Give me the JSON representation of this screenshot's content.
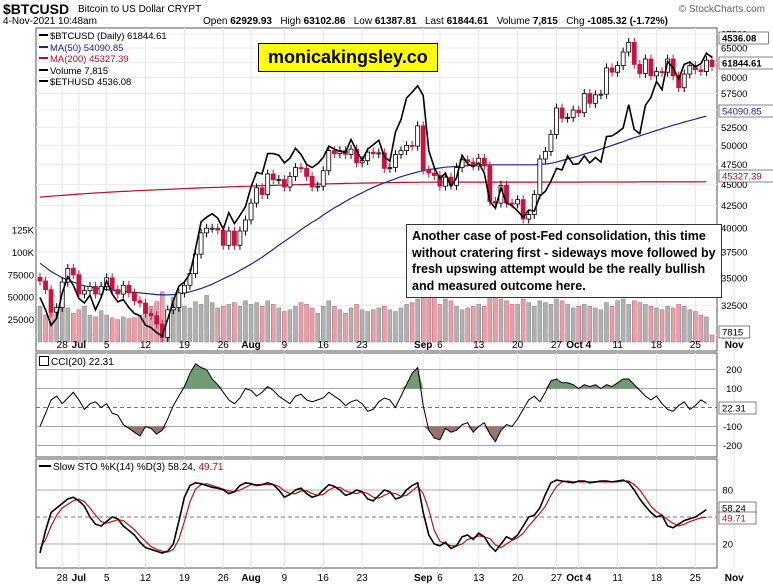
{
  "header": {
    "ticker": "$BTCUSD",
    "name": "Bitcoin to US Dollar",
    "exchange": "CRYPT",
    "date": "4-Nov-2021 10:48am",
    "open_label": "Open",
    "open": "62929.93",
    "high_label": "High",
    "high": "63102.86",
    "low_label": "Low",
    "low": "61387.81",
    "last_label": "Last",
    "last": "61844.61",
    "volume_label": "Volume",
    "volume": "7,815",
    "chg_label": "Chg",
    "chg": "-1085.32 (-1.72%)",
    "credit": "© StockCharts.com"
  },
  "legend": [
    {
      "text": "$BTCUSD (Daily) 61844.61",
      "color": "#000000"
    },
    {
      "text": "MA(50) 54090.85",
      "color": "#1f2a8c"
    },
    {
      "text": "MA(200) 45327.39",
      "color": "#b0102a"
    },
    {
      "text": "Volume 7,815",
      "color": "#000000"
    },
    {
      "text": "$ETHUSD 4536.08",
      "color": "#000000"
    }
  ],
  "watermark": "monicakingsley.co",
  "annotation": "Another case of post-Fed consolidation, this time without cratering first - sideways move followed by fresh upswing attempt would be the really bullish and measured outcome here.",
  "price_labels": {
    "eth": "4536.08",
    "last": "61844.61",
    "ma50": "54090.85",
    "ma200": "45327.39",
    "volume": "7815"
  },
  "cci_label": "CCI(20) 22.31",
  "cci_value_tag": "22.31",
  "sto_label_prefix": "Slow STO %K(14) %D(3) 58.24,",
  "sto_label_d": "49.71",
  "sto_k_tag": "58.24",
  "sto_d_tag": "49.71",
  "colors": {
    "up": "#000000",
    "down": "#d0103a",
    "ma50": "#1f2a8c",
    "ma200": "#b0102a",
    "vol_down": "#e8a0a8",
    "vol_up": "#b0b0b0",
    "cci_fill": "#5a8a5a",
    "cci_neg_fill": "#8a5a55",
    "sto_d": "#d01010"
  },
  "chart_data": {
    "type": "candlestick",
    "x_tick_labels": [
      {
        "day": 4,
        "text": "28"
      },
      {
        "day": 7,
        "text": "Jul"
      },
      {
        "day": 12,
        "text": "5"
      },
      {
        "day": 19,
        "text": "12"
      },
      {
        "day": 26,
        "text": "19"
      },
      {
        "day": 33,
        "text": "26"
      },
      {
        "day": 38,
        "text": "Aug"
      },
      {
        "day": 44,
        "text": "9"
      },
      {
        "day": 51,
        "text": "16"
      },
      {
        "day": 58,
        "text": "23"
      },
      {
        "day": 69,
        "text": "Sep"
      },
      {
        "day": 72,
        "text": "6"
      },
      {
        "day": 79,
        "text": "13"
      },
      {
        "day": 86,
        "text": "20"
      },
      {
        "day": 93,
        "text": "27"
      },
      {
        "day": 97,
        "text": "Oct 4"
      },
      {
        "day": 104,
        "text": "11"
      },
      {
        "day": 111,
        "text": "18"
      },
      {
        "day": 118,
        "text": "25"
      },
      {
        "day": 125,
        "text": "Nov"
      }
    ],
    "price": {
      "scale": "log",
      "ylim": [
        30000,
        67500
      ],
      "ticks": [
        30000,
        32500,
        35000,
        37500,
        40000,
        42500,
        45000,
        47500,
        50000,
        52500,
        55000,
        57500,
        60000,
        62500,
        65000,
        67500
      ],
      "closes": [
        34700,
        33900,
        31900,
        32300,
        34600,
        35900,
        35300,
        33500,
        33800,
        34200,
        33500,
        34200,
        35000,
        33900,
        33500,
        34300,
        33600,
        32900,
        32700,
        31800,
        31600,
        30900,
        29800,
        32100,
        32300,
        33600,
        34300,
        35400,
        37300,
        39500,
        40000,
        40000,
        39800,
        38200,
        39700,
        38200,
        39700,
        40900,
        42800,
        44600,
        43800,
        46300,
        45600,
        45600,
        44700,
        46000,
        47100,
        47000,
        46000,
        44700,
        44800,
        46700,
        49300,
        48900,
        49300,
        48800,
        49500,
        47700,
        48000,
        49100,
        48900,
        49000,
        47000,
        47100,
        48800,
        49300,
        50000,
        49900,
        52700,
        46800,
        46400,
        46100,
        44800,
        45900,
        44900,
        47100,
        48100,
        47800,
        47300,
        48300,
        47300,
        43000,
        42800,
        44900,
        42800,
        42700,
        43200,
        41000,
        41500,
        43800,
        48200,
        49200,
        51500,
        55300,
        53800,
        53900,
        55000,
        54600,
        57500,
        56000,
        57300,
        57400,
        61600,
        60900,
        62000,
        64300,
        66000,
        62200,
        60700,
        63100,
        60300,
        61000,
        60900,
        63100,
        60300,
        58400,
        60600,
        62000,
        61300,
        61000,
        62900,
        61844
      ],
      "ma50": [
        36400,
        36000,
        35600,
        35300,
        35000,
        34800,
        34600,
        34400,
        34250,
        34150,
        34050,
        33950,
        33900,
        33850,
        33800,
        33750,
        33700,
        33650,
        33600,
        33550,
        33500,
        33450,
        33420,
        33420,
        33450,
        33500,
        33600,
        33700,
        33850,
        34000,
        34200,
        34400,
        34650,
        34900,
        35150,
        35400,
        35700,
        36000,
        36300,
        36650,
        37000,
        37400,
        37800,
        38200,
        38600,
        39000,
        39400,
        39850,
        40250,
        40650,
        41000,
        41450,
        41850,
        42250,
        42600,
        43000,
        43350,
        43700,
        44000,
        44350,
        44650,
        44950,
        45200,
        45450,
        45700,
        45950,
        46150,
        46350,
        46550,
        46700,
        46850,
        46950,
        47050,
        47150,
        47200,
        47250,
        47300,
        47350,
        47400,
        47450,
        47450,
        47450,
        47450,
        47450,
        47450,
        47450,
        47450,
        47450,
        47450,
        47450,
        47500,
        47550,
        47650,
        47800,
        48000,
        48200,
        48400,
        48600,
        48850,
        49050,
        49250,
        49500,
        49750,
        50000,
        50250,
        50500,
        50800,
        51050,
        51300,
        51550,
        51800,
        52050,
        52300,
        52550,
        52800,
        53000,
        53250,
        53450,
        53650,
        53900,
        54090
      ],
      "ma200": [
        43500,
        43550,
        43600,
        43650,
        43700,
        43750,
        43800,
        43850,
        43900,
        43950,
        43980,
        44020,
        44060,
        44100,
        44140,
        44170,
        44200,
        44240,
        44270,
        44300,
        44330,
        44360,
        44390,
        44420,
        44450,
        44480,
        44510,
        44530,
        44560,
        44590,
        44610,
        44640,
        44660,
        44690,
        44710,
        44740,
        44760,
        44780,
        44800,
        44830,
        44850,
        44870,
        44890,
        44910,
        44930,
        44950,
        44970,
        44990,
        45010,
        45030,
        45050,
        45060,
        45080,
        45100,
        45110,
        45130,
        45140,
        45160,
        45170,
        45180,
        45200,
        45210,
        45220,
        45230,
        45240,
        45250,
        45260,
        45270,
        45270,
        45280,
        45280,
        45290,
        45290,
        45290,
        45290,
        45290,
        45290,
        45290,
        45290,
        45290,
        45290,
        45290,
        45290,
        45290,
        45290,
        45290,
        45290,
        45290,
        45290,
        45290,
        45290,
        45290,
        45290,
        45290,
        45290,
        45290,
        45290,
        45290,
        45300,
        45300,
        45300,
        45300,
        45300,
        45310,
        45310,
        45310,
        45310,
        45310,
        45320,
        45320,
        45320,
        45320,
        45320,
        45320,
        45320,
        45320,
        45320,
        45320,
        45320,
        45327,
        45327
      ],
      "eth_overlay_closes": [
        33200,
        32100,
        30800,
        31400,
        33600,
        35100,
        34300,
        33100,
        32700,
        33400,
        32100,
        33200,
        34700,
        33500,
        32800,
        33000,
        32300,
        31800,
        31600,
        30800,
        30600,
        30200,
        29900,
        31300,
        32900,
        34200,
        34600,
        35400,
        37800,
        40700,
        41200,
        41600,
        41100,
        39900,
        41700,
        40500,
        41400,
        42400,
        44700,
        46500,
        46300,
        48900,
        48900,
        48700,
        47700,
        48300,
        49600,
        48800,
        47500,
        47100,
        47600,
        48400,
        49900,
        49500,
        49200,
        49100,
        50800,
        49300,
        48000,
        49500,
        50100,
        50700,
        48500,
        47900,
        51800,
        53600,
        56800,
        57700,
        58700,
        57200,
        49300,
        47100,
        45700,
        46400,
        44800,
        45800,
        48700,
        47600,
        47200,
        47700,
        46400,
        43000,
        42200,
        44600,
        42800,
        42500,
        41900,
        41200,
        42000,
        41900,
        43600,
        44200,
        45400,
        47000,
        46800,
        48600,
        47500,
        47600,
        48600,
        47700,
        48400,
        47800,
        51200,
        51300,
        51800,
        52400,
        55800,
        52200,
        51600,
        55700,
        56900,
        59400,
        58100,
        62700,
        61600,
        59800,
        62200,
        62600,
        61800,
        62300,
        64100,
        63400
      ],
      "y_unit": "USD"
    },
    "volume": {
      "ylim": [
        0,
        125000
      ],
      "ticks": [
        25000,
        50000,
        75000,
        100000,
        125000
      ],
      "tick_labels": [
        "25000",
        "50000",
        "75000",
        "100K",
        "125K"
      ],
      "values": [
        40000,
        30000,
        48000,
        35000,
        42000,
        38000,
        32000,
        36000,
        40000,
        30000,
        28000,
        35000,
        30000,
        27000,
        25000,
        28000,
        26000,
        27000,
        30000,
        36000,
        40000,
        45000,
        56000,
        32000,
        50000,
        46000,
        40000,
        38000,
        45000,
        42000,
        52000,
        44000,
        38000,
        40000,
        42000,
        44000,
        40000,
        46000,
        42000,
        44000,
        40000,
        46000,
        42000,
        38000,
        34000,
        36000,
        40000,
        44000,
        42000,
        38000,
        32000,
        40000,
        46000,
        40000,
        36000,
        32000,
        38000,
        42000,
        36000,
        34000,
        36000,
        38000,
        40000,
        36000,
        34000,
        38000,
        42000,
        44000,
        48000,
        62000,
        54000,
        50000,
        42000,
        48000,
        46000,
        40000,
        36000,
        38000,
        40000,
        42000,
        40000,
        62000,
        56000,
        48000,
        46000,
        42000,
        42000,
        48000,
        44000,
        40000,
        46000,
        44000,
        42000,
        48000,
        46000,
        42000,
        38000,
        40000,
        42000,
        40000,
        38000,
        36000,
        44000,
        40000,
        46000,
        48000,
        42000,
        46000,
        44000,
        42000,
        40000,
        38000,
        36000,
        40000,
        38000,
        42000,
        40000,
        36000,
        34000,
        30000,
        28000,
        7815
      ]
    },
    "cci": {
      "ylim": [
        -250,
        250
      ],
      "ticks": [
        -200,
        -100,
        0,
        100,
        200
      ],
      "values": [
        -100,
        -30,
        40,
        60,
        20,
        50,
        80,
        40,
        -10,
        20,
        30,
        0,
        20,
        -30,
        -40,
        -90,
        -110,
        -130,
        -150,
        -100,
        -110,
        -140,
        -120,
        -60,
        10,
        60,
        110,
        180,
        230,
        210,
        200,
        150,
        120,
        80,
        40,
        20,
        50,
        100,
        90,
        60,
        80,
        110,
        90,
        60,
        40,
        20,
        60,
        70,
        40,
        30,
        40,
        50,
        80,
        60,
        40,
        10,
        30,
        40,
        20,
        -20,
        -10,
        30,
        50,
        40,
        0,
        60,
        120,
        180,
        210,
        10,
        -120,
        -160,
        -170,
        -110,
        -130,
        -120,
        -90,
        -80,
        -130,
        -100,
        -80,
        -140,
        -180,
        -120,
        -90,
        -100,
        -60,
        -10,
        40,
        60,
        30,
        80,
        140,
        150,
        130,
        130,
        120,
        100,
        120,
        110,
        120,
        100,
        120,
        110,
        130,
        150,
        150,
        120,
        90,
        60,
        40,
        60,
        20,
        -10,
        -20,
        10,
        30,
        -10,
        10,
        40,
        22.31
      ]
    },
    "stochastic": {
      "ylim": [
        0,
        100
      ],
      "ticks": [
        20,
        50,
        80
      ],
      "k": [
        10,
        35,
        55,
        60,
        65,
        70,
        72,
        68,
        62,
        50,
        42,
        40,
        45,
        50,
        48,
        40,
        35,
        30,
        22,
        16,
        14,
        12,
        10,
        12,
        20,
        45,
        72,
        85,
        88,
        87,
        85,
        83,
        82,
        80,
        76,
        78,
        85,
        88,
        87,
        85,
        86,
        88,
        86,
        80,
        72,
        75,
        80,
        82,
        76,
        72,
        74,
        80,
        86,
        84,
        80,
        74,
        76,
        80,
        78,
        70,
        68,
        74,
        80,
        78,
        70,
        72,
        80,
        85,
        88,
        55,
        30,
        20,
        18,
        22,
        15,
        18,
        28,
        30,
        25,
        32,
        28,
        18,
        12,
        20,
        28,
        25,
        30,
        40,
        50,
        52,
        60,
        75,
        88,
        91,
        90,
        89,
        88,
        90,
        90,
        88,
        89,
        90,
        90,
        89,
        90,
        91,
        88,
        80,
        70,
        62,
        55,
        50,
        52,
        40,
        38,
        42,
        46,
        48,
        50,
        54,
        58.24
      ],
      "d": [
        15,
        25,
        40,
        52,
        60,
        64,
        68,
        70,
        67,
        60,
        52,
        45,
        43,
        45,
        47,
        46,
        41,
        36,
        29,
        23,
        17,
        14,
        12,
        11,
        14,
        25,
        45,
        67,
        81,
        86,
        87,
        85,
        83,
        81,
        79,
        78,
        80,
        83,
        86,
        86,
        86,
        86,
        86,
        84,
        79,
        76,
        76,
        79,
        79,
        76,
        74,
        75,
        80,
        83,
        83,
        79,
        77,
        76,
        78,
        76,
        72,
        71,
        74,
        77,
        76,
        73,
        74,
        79,
        84,
        76,
        58,
        35,
        23,
        20,
        18,
        18,
        20,
        25,
        27,
        29,
        28,
        26,
        19,
        16,
        20,
        24,
        27,
        32,
        40,
        47,
        54,
        62,
        74,
        84,
        89,
        90,
        89,
        89,
        89,
        89,
        89,
        89,
        89,
        89,
        89,
        90,
        90,
        86,
        80,
        71,
        62,
        56,
        52,
        47,
        43,
        40,
        42,
        45,
        47,
        49,
        49.71
      ]
    }
  }
}
